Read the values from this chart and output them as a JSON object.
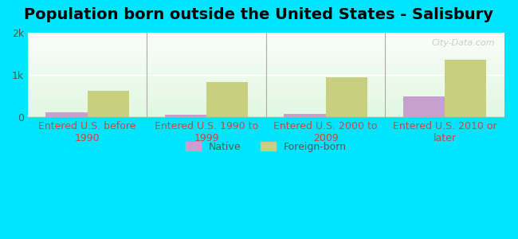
{
  "title": "Population born outside the United States - Salisbury",
  "categories": [
    "Entered U.S. before\n1990",
    "Entered U.S. 1990 to\n1999",
    "Entered U.S. 2000 to\n2009",
    "Entered U.S. 2010 or\nlater"
  ],
  "native_values": [
    110,
    50,
    80,
    500
  ],
  "foreign_values": [
    620,
    830,
    950,
    1350
  ],
  "native_color": "#c8a0d0",
  "foreign_color": "#c8d080",
  "ylim": [
    0,
    2000
  ],
  "ytick_labels": [
    "0",
    "1k",
    "2k"
  ],
  "background_outer": "#00e5ff",
  "bar_width": 0.35,
  "legend_native": "Native",
  "legend_foreign": "Foreign-born",
  "title_fontsize": 14,
  "label_fontsize": 9,
  "tick_fontsize": 9,
  "watermark": "City-Data.com"
}
